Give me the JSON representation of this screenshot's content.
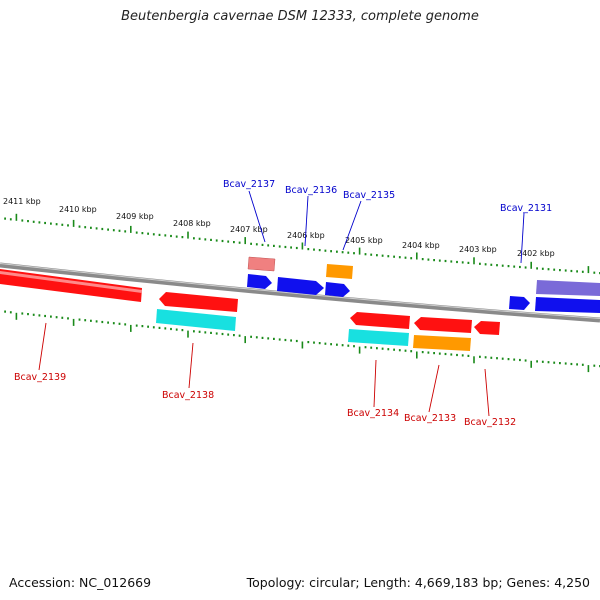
{
  "title": "Beutenbergia cavernae DSM 12333, complete genome",
  "footer": {
    "accession": "Accession: NC_012669",
    "topology": "Topology: circular; Length: 4,669,183 bp; Genes: 4,250"
  },
  "colors": {
    "backbone": "#8a8a8a",
    "tick": "#1a8a1a",
    "forward_label": "#0000cc",
    "reverse_label": "#cc0000",
    "red": "#ff1111",
    "blue": "#1010ee",
    "cyan": "#18e0e0",
    "orange": "#ff9900",
    "pink": "#f08080",
    "purple": "#7a6ad8"
  },
  "kbp_ticks": [
    "2411 kbp",
    "2410 kbp",
    "2409 kbp",
    "2408 kbp",
    "2407 kbp",
    "2406 kbp",
    "2405 kbp",
    "2404 kbp",
    "2403 kbp",
    "2402 kbp"
  ],
  "forward_labels": [
    "Bcav_2137",
    "Bcav_2136",
    "Bcav_2135",
    "Bcav_2131"
  ],
  "reverse_labels": [
    "Bcav_2139",
    "Bcav_2138",
    "Bcav_2134",
    "Bcav_2133",
    "Bcav_2132"
  ]
}
